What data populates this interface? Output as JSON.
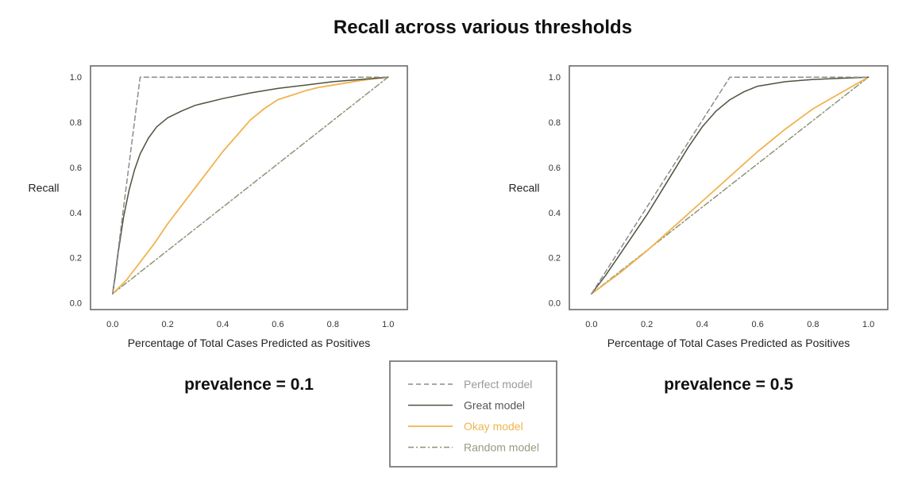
{
  "figure": {
    "title": "Recall across various thresholds"
  },
  "legend": {
    "entries": [
      {
        "key": "perfect",
        "label": "Perfect model",
        "color": "#8c8c8c",
        "text_color": "#9a9a9a",
        "dash": "dashed"
      },
      {
        "key": "great",
        "label": "Great model",
        "color": "#4d5340",
        "text_color": "#555555",
        "dash": "solid"
      },
      {
        "key": "okay",
        "label": "Okay model",
        "color": "#f0b350",
        "text_color": "#f0b350",
        "dash": "solid"
      },
      {
        "key": "random",
        "label": "Random model",
        "color": "#8e9478",
        "text_color": "#9a9a84",
        "dash": "dashdot"
      }
    ]
  },
  "chart_data": [
    {
      "type": "line",
      "title": "prevalence = 0.1",
      "xlabel": "Percentage of Total Cases Predicted as Positives",
      "ylabel": "Recall",
      "xlim": [
        -0.08,
        1.07
      ],
      "ylim": [
        -0.03,
        1.05
      ],
      "x_ticks": [
        "0.0",
        "0.2",
        "0.4",
        "0.6",
        "0.8",
        "1.0"
      ],
      "y_ticks": [
        "0.0",
        "0.2",
        "0.4",
        "0.6",
        "0.8",
        "1.0"
      ],
      "grid": false,
      "series": [
        {
          "name": "Perfect model",
          "x": [
            0.0,
            0.1,
            1.0
          ],
          "y": [
            0.04,
            1.0,
            1.0
          ]
        },
        {
          "name": "Great model",
          "x": [
            0.0,
            0.01,
            0.02,
            0.04,
            0.06,
            0.08,
            0.1,
            0.13,
            0.16,
            0.2,
            0.25,
            0.3,
            0.4,
            0.5,
            0.6,
            0.7,
            0.8,
            0.9,
            1.0
          ],
          "y": [
            0.04,
            0.12,
            0.22,
            0.38,
            0.5,
            0.59,
            0.66,
            0.73,
            0.78,
            0.82,
            0.85,
            0.875,
            0.905,
            0.93,
            0.95,
            0.965,
            0.98,
            0.99,
            1.0
          ]
        },
        {
          "name": "Okay model",
          "x": [
            0.0,
            0.05,
            0.1,
            0.15,
            0.2,
            0.25,
            0.3,
            0.35,
            0.4,
            0.45,
            0.5,
            0.55,
            0.6,
            0.65,
            0.7,
            0.75,
            0.8,
            0.85,
            0.9,
            0.95,
            1.0
          ],
          "y": [
            0.04,
            0.1,
            0.18,
            0.26,
            0.35,
            0.43,
            0.51,
            0.59,
            0.67,
            0.74,
            0.81,
            0.86,
            0.9,
            0.92,
            0.94,
            0.955,
            0.965,
            0.975,
            0.985,
            0.993,
            1.0
          ]
        },
        {
          "name": "Random model",
          "x": [
            0.0,
            1.0
          ],
          "y": [
            0.04,
            1.0
          ]
        }
      ]
    },
    {
      "type": "line",
      "title": "prevalence = 0.5",
      "xlabel": "Percentage of Total Cases Predicted as Positives",
      "ylabel": "Recall",
      "xlim": [
        -0.08,
        1.07
      ],
      "ylim": [
        -0.03,
        1.05
      ],
      "x_ticks": [
        "0.0",
        "0.2",
        "0.4",
        "0.6",
        "0.8",
        "1.0"
      ],
      "y_ticks": [
        "0.0",
        "0.2",
        "0.4",
        "0.6",
        "0.8",
        "1.0"
      ],
      "grid": false,
      "series": [
        {
          "name": "Perfect model",
          "x": [
            0.0,
            0.5,
            1.0
          ],
          "y": [
            0.04,
            1.0,
            1.0
          ]
        },
        {
          "name": "Great model",
          "x": [
            0.0,
            0.05,
            0.1,
            0.15,
            0.2,
            0.25,
            0.3,
            0.35,
            0.4,
            0.45,
            0.5,
            0.55,
            0.6,
            0.7,
            0.8,
            0.9,
            1.0
          ],
          "y": [
            0.04,
            0.12,
            0.21,
            0.3,
            0.39,
            0.49,
            0.59,
            0.69,
            0.78,
            0.85,
            0.9,
            0.935,
            0.96,
            0.98,
            0.99,
            0.995,
            1.0
          ]
        },
        {
          "name": "Okay model",
          "x": [
            0.0,
            0.1,
            0.2,
            0.3,
            0.4,
            0.5,
            0.6,
            0.7,
            0.8,
            0.9,
            1.0
          ],
          "y": [
            0.04,
            0.13,
            0.23,
            0.34,
            0.45,
            0.56,
            0.67,
            0.77,
            0.86,
            0.93,
            1.0
          ]
        },
        {
          "name": "Random model",
          "x": [
            0.0,
            1.0
          ],
          "y": [
            0.04,
            1.0
          ]
        }
      ]
    }
  ]
}
